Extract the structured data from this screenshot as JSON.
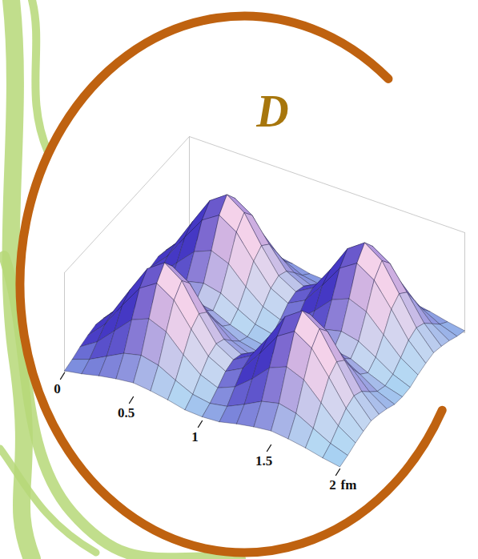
{
  "chart_data": {
    "type": "surface",
    "title": "D",
    "xlabel": "fm",
    "x": [
      0,
      0.125,
      0.25,
      0.375,
      0.5,
      0.625,
      0.75,
      0.875,
      1,
      1.125,
      1.25,
      1.375,
      1.5,
      1.625,
      1.75,
      1.875,
      2
    ],
    "y": [
      0,
      0.125,
      0.25,
      0.375,
      0.5,
      0.625,
      0.75,
      0.875,
      1,
      1.125,
      1.25,
      1.375,
      1.5,
      1.625,
      1.75,
      1.875,
      2
    ],
    "z": [
      [
        0.02,
        0.05,
        0.09,
        0.12,
        0.14,
        0.12,
        0.09,
        0.05,
        0.04,
        0.05,
        0.09,
        0.12,
        0.14,
        0.12,
        0.09,
        0.05,
        0.02
      ],
      [
        0.05,
        0.11,
        0.2,
        0.29,
        0.33,
        0.29,
        0.2,
        0.12,
        0.09,
        0.12,
        0.2,
        0.29,
        0.33,
        0.29,
        0.2,
        0.11,
        0.05
      ],
      [
        0.09,
        0.2,
        0.37,
        0.54,
        0.61,
        0.54,
        0.37,
        0.23,
        0.16,
        0.23,
        0.37,
        0.54,
        0.61,
        0.54,
        0.37,
        0.2,
        0.09
      ],
      [
        0.12,
        0.29,
        0.54,
        0.77,
        0.88,
        0.77,
        0.54,
        0.33,
        0.24,
        0.33,
        0.54,
        0.77,
        0.88,
        0.77,
        0.54,
        0.29,
        0.12
      ],
      [
        0.14,
        0.33,
        0.61,
        0.88,
        1,
        0.88,
        0.61,
        0.37,
        0.27,
        0.37,
        0.61,
        0.88,
        1,
        0.88,
        0.61,
        0.33,
        0.14
      ],
      [
        0.12,
        0.29,
        0.54,
        0.77,
        0.88,
        0.77,
        0.54,
        0.33,
        0.24,
        0.33,
        0.54,
        0.77,
        0.88,
        0.77,
        0.54,
        0.29,
        0.12
      ],
      [
        0.09,
        0.2,
        0.37,
        0.54,
        0.61,
        0.54,
        0.37,
        0.23,
        0.16,
        0.23,
        0.37,
        0.54,
        0.61,
        0.54,
        0.37,
        0.2,
        0.09
      ],
      [
        0.05,
        0.12,
        0.23,
        0.33,
        0.37,
        0.33,
        0.23,
        0.14,
        0.1,
        0.14,
        0.23,
        0.33,
        0.37,
        0.33,
        0.23,
        0.12,
        0.05
      ],
      [
        0.04,
        0.09,
        0.16,
        0.24,
        0.27,
        0.24,
        0.16,
        0.1,
        0.07,
        0.1,
        0.16,
        0.24,
        0.27,
        0.24,
        0.16,
        0.09,
        0.04
      ],
      [
        0.05,
        0.12,
        0.23,
        0.33,
        0.37,
        0.33,
        0.23,
        0.14,
        0.1,
        0.14,
        0.23,
        0.33,
        0.37,
        0.33,
        0.23,
        0.12,
        0.05
      ],
      [
        0.09,
        0.2,
        0.37,
        0.54,
        0.61,
        0.54,
        0.37,
        0.23,
        0.16,
        0.23,
        0.37,
        0.54,
        0.61,
        0.54,
        0.37,
        0.2,
        0.09
      ],
      [
        0.12,
        0.29,
        0.54,
        0.77,
        0.88,
        0.77,
        0.54,
        0.33,
        0.24,
        0.33,
        0.54,
        0.77,
        0.88,
        0.77,
        0.54,
        0.29,
        0.12
      ],
      [
        0.14,
        0.33,
        0.61,
        0.88,
        1,
        0.88,
        0.61,
        0.37,
        0.27,
        0.37,
        0.61,
        0.88,
        1,
        0.88,
        0.61,
        0.33,
        0.14
      ],
      [
        0.12,
        0.29,
        0.54,
        0.77,
        0.88,
        0.77,
        0.54,
        0.33,
        0.24,
        0.33,
        0.54,
        0.77,
        0.88,
        0.77,
        0.54,
        0.29,
        0.12
      ],
      [
        0.09,
        0.2,
        0.37,
        0.54,
        0.61,
        0.54,
        0.37,
        0.23,
        0.16,
        0.23,
        0.37,
        0.54,
        0.61,
        0.54,
        0.37,
        0.2,
        0.09
      ],
      [
        0.05,
        0.11,
        0.2,
        0.29,
        0.33,
        0.29,
        0.2,
        0.12,
        0.09,
        0.12,
        0.2,
        0.29,
        0.33,
        0.29,
        0.2,
        0.11,
        0.05
      ],
      [
        0.02,
        0.05,
        0.09,
        0.12,
        0.14,
        0.12,
        0.09,
        0.05,
        0.04,
        0.05,
        0.09,
        0.12,
        0.14,
        0.12,
        0.09,
        0.05,
        0.02
      ]
    ],
    "xlim": [
      0,
      2
    ],
    "ylim": [
      0,
      2
    ],
    "zlim": [
      0,
      1
    ],
    "xticks": [
      0,
      0.5,
      1,
      1.5,
      2
    ],
    "tick_labels": "x"
  }
}
